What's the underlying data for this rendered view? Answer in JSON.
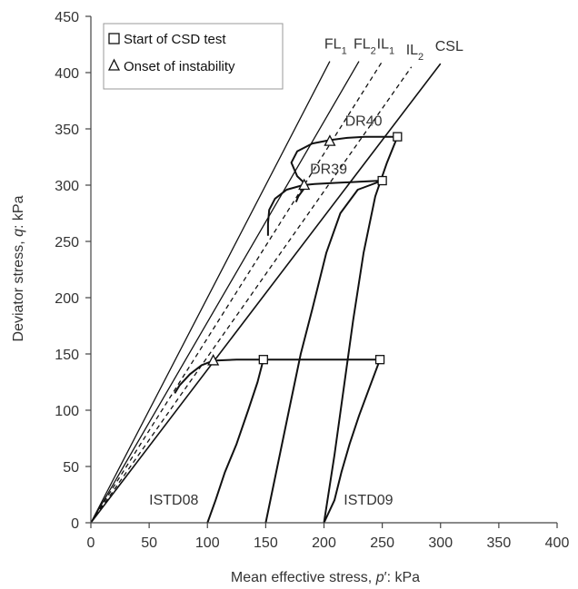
{
  "chart_data": {
    "type": "line",
    "xlabel": {
      "pre": "Mean effective stress, ",
      "italic": "p",
      "post": "′: kPa"
    },
    "ylabel": {
      "pre": "Deviator stress, ",
      "italic": "q",
      "post": ": kPa"
    },
    "xlim": [
      0,
      400
    ],
    "ylim": [
      0,
      450
    ],
    "xticks": [
      0,
      50,
      100,
      150,
      200,
      250,
      300,
      350,
      400
    ],
    "yticks": [
      0,
      50,
      100,
      150,
      200,
      250,
      300,
      350,
      400,
      450
    ],
    "grid": false,
    "legend": {
      "placement": "top-left",
      "items": [
        {
          "symbol": "square",
          "label": "Start of CSD test"
        },
        {
          "symbol": "triangle",
          "label": "Onset of instability"
        }
      ]
    },
    "reference_lines": [
      {
        "name": "FL",
        "sub": "1",
        "style": "solid",
        "color": "#111111",
        "points": [
          [
            0,
            0
          ],
          [
            205,
            410
          ]
        ]
      },
      {
        "name": "FL",
        "sub": "2",
        "style": "solid",
        "color": "#111111",
        "points": [
          [
            0,
            0
          ],
          [
            230,
            410
          ]
        ]
      },
      {
        "name": "IL",
        "sub": "1",
        "style": "dashed",
        "color": "#111111",
        "points": [
          [
            0,
            0
          ],
          [
            250,
            410
          ]
        ]
      },
      {
        "name": "IL",
        "sub": "2",
        "style": "dashed",
        "color": "#111111",
        "points": [
          [
            0,
            0
          ],
          [
            275,
            405
          ]
        ]
      },
      {
        "name": "CSL",
        "sub": "",
        "style": "solid",
        "color": "#111111",
        "points": [
          [
            0,
            0
          ],
          [
            300,
            408
          ]
        ]
      }
    ],
    "series": [
      {
        "name": "DR40",
        "points": [
          [
            200,
            0
          ],
          [
            209,
            60
          ],
          [
            217,
            120
          ],
          [
            225,
            180
          ],
          [
            234,
            240
          ],
          [
            244,
            290
          ],
          [
            254,
            320
          ],
          [
            263,
            343
          ],
          [
            250,
            343
          ],
          [
            235,
            343
          ],
          [
            220,
            342
          ],
          [
            205,
            340
          ],
          [
            190,
            337
          ],
          [
            177,
            330
          ],
          [
            172,
            320
          ],
          [
            177,
            308
          ],
          [
            185,
            300
          ],
          [
            178,
            290
          ],
          [
            176,
            285
          ]
        ],
        "start": [
          263,
          343
        ],
        "onset": [
          205,
          339
        ]
      },
      {
        "name": "DR39",
        "points": [
          [
            150,
            0
          ],
          [
            160,
            50
          ],
          [
            170,
            100
          ],
          [
            180,
            150
          ],
          [
            190,
            190
          ],
          [
            202,
            240
          ],
          [
            214,
            275
          ],
          [
            229,
            296
          ],
          [
            250,
            304
          ],
          [
            230,
            303
          ],
          [
            210,
            302
          ],
          [
            192,
            301
          ],
          [
            182,
            300
          ],
          [
            168,
            296
          ],
          [
            158,
            288
          ],
          [
            153,
            278
          ],
          [
            152,
            266
          ],
          [
            152,
            255
          ]
        ],
        "start": [
          250,
          304
        ],
        "onset": [
          183,
          300
        ]
      },
      {
        "name": "ISTD09",
        "points": [
          [
            200,
            0
          ],
          [
            209,
            20
          ],
          [
            215,
            45
          ],
          [
            222,
            70
          ],
          [
            230,
            95
          ],
          [
            239,
            120
          ],
          [
            248,
            145
          ],
          [
            225,
            145
          ],
          [
            200,
            145
          ],
          [
            175,
            145
          ],
          [
            150,
            145
          ]
        ],
        "start": [
          248,
          145
        ],
        "onset": null
      },
      {
        "name": "ISTD08",
        "points": [
          [
            100,
            0
          ],
          [
            107,
            20
          ],
          [
            115,
            45
          ],
          [
            125,
            70
          ],
          [
            135,
            100
          ],
          [
            143,
            125
          ],
          [
            148,
            145
          ],
          [
            125,
            145
          ],
          [
            105,
            144
          ],
          [
            95,
            140
          ],
          [
            85,
            132
          ],
          [
            76,
            122
          ],
          [
            72,
            115
          ]
        ],
        "start": [
          148,
          145
        ],
        "onset": [
          105,
          144
        ]
      }
    ],
    "annotations": [
      {
        "text": "DR40",
        "x": 218,
        "y": 353
      },
      {
        "text": "DR39",
        "x": 188,
        "y": 310
      },
      {
        "text": "ISTD08",
        "x": 50,
        "y": 16
      },
      {
        "text": "ISTD09",
        "x": 217,
        "y": 16
      }
    ]
  }
}
